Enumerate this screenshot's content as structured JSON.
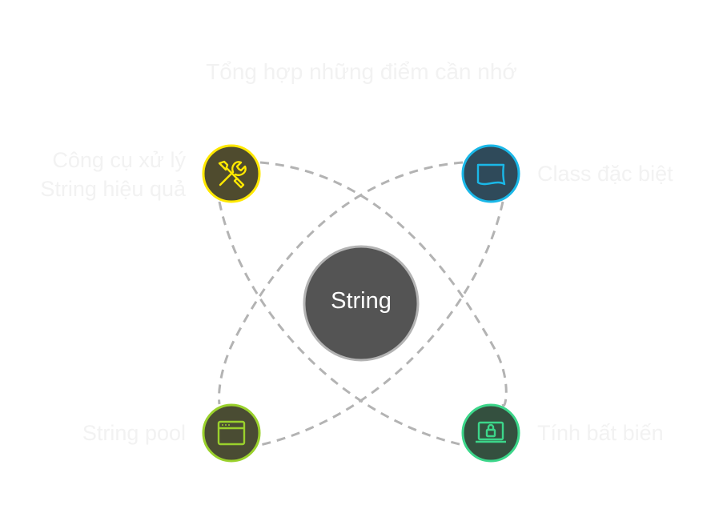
{
  "title": "Tổng hợp những điểm cần nhớ",
  "center": {
    "label": "String",
    "fill": "#545454",
    "stroke": "#b3b3b3"
  },
  "nodes": [
    {
      "key": "tools",
      "label_lines": [
        "Công cụ xử lý",
        "String hiệu quả"
      ],
      "icon": "tools-icon",
      "fill": "#4f4b2e",
      "stroke": "#ffe800"
    },
    {
      "key": "class",
      "label_lines": [
        "Class đặc biệt"
      ],
      "icon": "document-icon",
      "fill": "#2f4a5a",
      "stroke": "#1ab8e8"
    },
    {
      "key": "pool",
      "label_lines": [
        "String pool"
      ],
      "icon": "browser-window-icon",
      "fill": "#4a4c33",
      "stroke": "#9ad12c"
    },
    {
      "key": "immutable",
      "label_lines": [
        "Tính bất biến"
      ],
      "icon": "laptop-lock-icon",
      "fill": "#34503f",
      "stroke": "#3cd68a"
    }
  ],
  "connector_color": "#b3b3b3",
  "label_color": "#f2f2f2"
}
